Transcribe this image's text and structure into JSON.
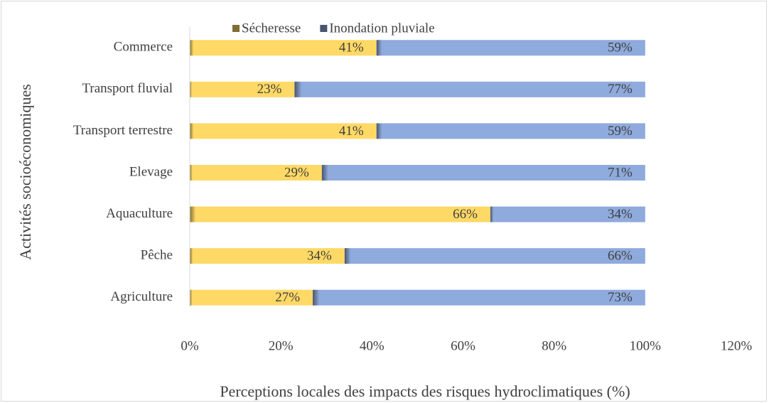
{
  "chart_data": {
    "type": "stacked_barh",
    "xlabel": "Perceptions locales des impacts des risques hydroclimatiques (%)",
    "ylabel": "Activités socioéconomiques",
    "categories": [
      "Commerce",
      "Transport fluvial",
      "Transport terrestre",
      "Elevage",
      "Aquaculture ",
      "Pêche",
      "Agriculture"
    ],
    "series": [
      {
        "name": "Sécheresse",
        "color": "#ffd966",
        "values": [
          41,
          23,
          41,
          29,
          66,
          34,
          27
        ],
        "value_labels": [
          "41%",
          "23%",
          "41%",
          "29%",
          "66%",
          "34%",
          "27%"
        ]
      },
      {
        "name": "Inondation pluviale",
        "color": "#8faadc",
        "values": [
          59,
          77,
          59,
          71,
          34,
          66,
          73
        ],
        "value_labels": [
          "59%",
          "77%",
          "59%",
          "71%",
          "34%",
          "66%",
          "73%"
        ]
      }
    ],
    "legend": "top",
    "xlim": [
      0,
      120
    ],
    "xticks": [
      {
        "value": 0,
        "label": "0%"
      },
      {
        "value": 20,
        "label": "20%"
      },
      {
        "value": 40,
        "label": "40%"
      },
      {
        "value": 60,
        "label": "60%"
      },
      {
        "value": 80,
        "label": "80%"
      },
      {
        "value": 100,
        "label": "100%"
      },
      {
        "value": 120,
        "label": "120%"
      }
    ]
  }
}
